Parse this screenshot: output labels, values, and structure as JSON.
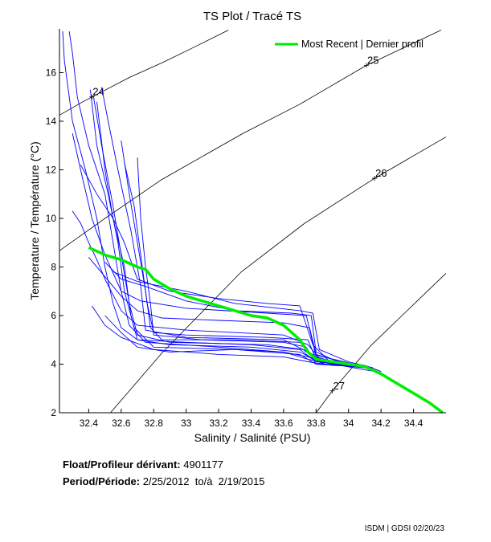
{
  "chart_data": {
    "type": "line",
    "title": "TS Plot / Tracé TS",
    "xlabel": "Salinity / Salinité (PSU)",
    "ylabel": "Temperature / Température (°C)",
    "xlim": [
      32.22,
      34.6
    ],
    "ylim": [
      2,
      17.8
    ],
    "xticks": [
      32.4,
      32.6,
      32.8,
      33,
      33.2,
      33.4,
      33.6,
      33.8,
      34,
      34.2,
      34.4
    ],
    "yticks": [
      2,
      4,
      6,
      8,
      10,
      12,
      14,
      16
    ],
    "grid": false,
    "legend": {
      "placement": "top-right",
      "entries": [
        "Most Recent | Dernier profil"
      ]
    },
    "colors": {
      "profiles": "#0000ff",
      "most_recent": "#00ee00",
      "density": "#000000"
    },
    "density_contours": [
      {
        "label": "24",
        "label_at": [
          32.42,
          15.0
        ],
        "points": [
          [
            32.22,
            14.25
          ],
          [
            32.35,
            14.75
          ],
          [
            32.42,
            15.0
          ],
          [
            32.65,
            15.8
          ],
          [
            32.85,
            16.4
          ],
          [
            33.05,
            17.05
          ],
          [
            33.26,
            17.75
          ]
        ]
      },
      {
        "label": "25",
        "label_at": [
          34.11,
          16.3
        ],
        "points": [
          [
            32.22,
            8.67
          ],
          [
            32.5,
            10.0
          ],
          [
            32.85,
            11.6
          ],
          [
            33.35,
            13.5
          ],
          [
            33.7,
            14.7
          ],
          [
            34.11,
            16.3
          ],
          [
            34.57,
            17.75
          ]
        ]
      },
      {
        "label": "26",
        "label_at": [
          34.16,
          11.65
        ],
        "points": [
          [
            32.53,
            1.97
          ],
          [
            32.85,
            4.45
          ],
          [
            33.34,
            7.8
          ],
          [
            33.73,
            9.8
          ],
          [
            34.16,
            11.65
          ],
          [
            34.6,
            13.35
          ]
        ]
      },
      {
        "label": "27",
        "label_at": [
          33.9,
          2.9
        ],
        "points": [
          [
            33.79,
            1.9
          ],
          [
            33.9,
            2.9
          ],
          [
            34.14,
            4.78
          ],
          [
            34.6,
            7.74
          ]
        ]
      }
    ],
    "most_recent": [
      [
        32.4,
        8.8
      ],
      [
        32.5,
        8.5
      ],
      [
        32.6,
        8.3
      ],
      [
        32.7,
        8.0
      ],
      [
        32.75,
        7.9
      ],
      [
        32.8,
        7.5
      ],
      [
        32.9,
        7.1
      ],
      [
        33.0,
        6.8
      ],
      [
        33.2,
        6.4
      ],
      [
        33.4,
        6.0
      ],
      [
        33.5,
        5.9
      ],
      [
        33.6,
        5.6
      ],
      [
        33.7,
        5.0
      ],
      [
        33.75,
        4.5
      ],
      [
        33.8,
        4.2
      ],
      [
        33.9,
        4.1
      ],
      [
        34.0,
        4.0
      ],
      [
        34.1,
        3.9
      ],
      [
        34.2,
        3.6
      ],
      [
        34.3,
        3.2
      ],
      [
        34.4,
        2.8
      ],
      [
        34.5,
        2.4
      ],
      [
        34.58,
        2.0
      ]
    ],
    "profiles": [
      [
        [
          32.24,
          17.7
        ],
        [
          32.25,
          16.5
        ],
        [
          32.3,
          14
        ],
        [
          32.38,
          12
        ],
        [
          32.45,
          10
        ],
        [
          32.5,
          8
        ],
        [
          32.55,
          6.5
        ],
        [
          32.6,
          5.5
        ],
        [
          32.7,
          5.0
        ],
        [
          33.0,
          4.9
        ],
        [
          33.4,
          4.8
        ],
        [
          33.7,
          4.6
        ],
        [
          33.8,
          4.1
        ],
        [
          34.0,
          3.95
        ],
        [
          34.15,
          3.8
        ]
      ],
      [
        [
          32.28,
          17.7
        ],
        [
          32.3,
          16.8
        ],
        [
          32.33,
          15
        ],
        [
          32.4,
          13
        ],
        [
          32.5,
          11
        ],
        [
          32.55,
          9
        ],
        [
          32.6,
          7
        ],
        [
          32.65,
          5.6
        ],
        [
          32.75,
          4.9
        ],
        [
          33.2,
          4.7
        ],
        [
          33.6,
          4.5
        ],
        [
          33.75,
          4.3
        ],
        [
          33.85,
          4.0
        ],
        [
          34.1,
          3.85
        ]
      ],
      [
        [
          32.41,
          15.3
        ],
        [
          32.45,
          13
        ],
        [
          32.52,
          11
        ],
        [
          32.58,
          9
        ],
        [
          32.62,
          7
        ],
        [
          32.68,
          5.5
        ],
        [
          32.8,
          4.7
        ],
        [
          33.3,
          4.6
        ],
        [
          33.7,
          4.4
        ],
        [
          33.8,
          4.0
        ],
        [
          34.05,
          3.9
        ]
      ],
      [
        [
          32.43,
          15.0
        ],
        [
          32.48,
          13
        ],
        [
          32.55,
          10.5
        ],
        [
          32.6,
          8.5
        ],
        [
          32.65,
          6.5
        ],
        [
          32.7,
          5.2
        ],
        [
          32.9,
          4.9
        ],
        [
          33.5,
          4.8
        ],
        [
          33.72,
          4.6
        ],
        [
          33.82,
          4.1
        ],
        [
          34.1,
          3.9
        ]
      ],
      [
        [
          32.6,
          13.2
        ],
        [
          32.65,
          11
        ],
        [
          32.7,
          9
        ],
        [
          32.75,
          7
        ],
        [
          32.78,
          5.5
        ],
        [
          32.85,
          5.0
        ],
        [
          33.3,
          5.0
        ],
        [
          33.7,
          4.9
        ],
        [
          33.78,
          4.3
        ],
        [
          34.0,
          4.0
        ]
      ],
      [
        [
          32.62,
          12.3
        ],
        [
          32.68,
          10.5
        ],
        [
          32.72,
          8.5
        ],
        [
          32.76,
          6.5
        ],
        [
          32.8,
          5.3
        ],
        [
          33.0,
          5.2
        ],
        [
          33.5,
          5.1
        ],
        [
          33.75,
          5.0
        ],
        [
          33.8,
          4.2
        ],
        [
          34.1,
          3.95
        ],
        [
          34.2,
          3.7
        ]
      ],
      [
        [
          32.3,
          10.3
        ],
        [
          32.35,
          9.8
        ],
        [
          32.4,
          9
        ],
        [
          32.45,
          8.3
        ],
        [
          32.5,
          7.5
        ],
        [
          32.6,
          6.2
        ],
        [
          32.7,
          5.6
        ],
        [
          33.0,
          5.4
        ],
        [
          33.6,
          5.2
        ],
        [
          33.75,
          4.8
        ],
        [
          33.85,
          4.0
        ],
        [
          34.05,
          3.9
        ]
      ],
      [
        [
          32.4,
          8.4
        ],
        [
          32.5,
          7.6
        ],
        [
          32.6,
          6.8
        ],
        [
          32.7,
          6.2
        ],
        [
          32.85,
          5.9
        ],
        [
          33.2,
          5.8
        ],
        [
          33.6,
          5.7
        ],
        [
          33.76,
          5.5
        ],
        [
          33.8,
          4.4
        ],
        [
          34.0,
          4.0
        ]
      ],
      [
        [
          32.5,
          8.2
        ],
        [
          32.6,
          7.5
        ],
        [
          32.75,
          7.2
        ],
        [
          33.0,
          6.6
        ],
        [
          33.3,
          6.2
        ],
        [
          33.65,
          6.1
        ],
        [
          33.77,
          6.0
        ],
        [
          33.8,
          4.5
        ],
        [
          33.95,
          4.05
        ],
        [
          34.1,
          3.9
        ]
      ],
      [
        [
          32.55,
          7.8
        ],
        [
          32.7,
          7.4
        ],
        [
          33.0,
          7.0
        ],
        [
          33.3,
          6.5
        ],
        [
          33.7,
          6.2
        ],
        [
          33.78,
          6.1
        ],
        [
          33.82,
          4.6
        ],
        [
          34.0,
          4.1
        ],
        [
          34.15,
          3.85
        ]
      ],
      [
        [
          32.42,
          6.4
        ],
        [
          32.5,
          5.6
        ],
        [
          32.6,
          5.1
        ],
        [
          32.8,
          4.6
        ],
        [
          33.2,
          4.4
        ],
        [
          33.6,
          4.3
        ],
        [
          33.75,
          4.1
        ],
        [
          33.9,
          3.95
        ],
        [
          34.1,
          3.9
        ]
      ],
      [
        [
          32.5,
          6.0
        ],
        [
          32.6,
          5.3
        ],
        [
          32.7,
          4.7
        ],
        [
          32.9,
          4.5
        ],
        [
          33.3,
          4.6
        ],
        [
          33.6,
          4.5
        ],
        [
          33.75,
          4.2
        ],
        [
          34.0,
          3.9
        ]
      ],
      [
        [
          32.45,
          14.8
        ],
        [
          32.5,
          12
        ],
        [
          32.55,
          10
        ],
        [
          32.62,
          8
        ],
        [
          32.66,
          6
        ],
        [
          32.7,
          5.0
        ],
        [
          32.9,
          4.8
        ],
        [
          33.4,
          4.7
        ],
        [
          33.7,
          4.5
        ],
        [
          33.82,
          4.1
        ],
        [
          34.2,
          3.65
        ]
      ],
      [
        [
          32.7,
          12.5
        ],
        [
          32.72,
          10
        ],
        [
          32.75,
          8
        ],
        [
          32.78,
          6.5
        ],
        [
          32.8,
          5.2
        ],
        [
          33.1,
          5.0
        ],
        [
          33.6,
          4.9
        ],
        [
          33.74,
          4.7
        ],
        [
          33.8,
          4.0
        ],
        [
          34.05,
          3.95
        ]
      ],
      [
        [
          32.3,
          13.5
        ],
        [
          32.35,
          12
        ],
        [
          32.42,
          10
        ],
        [
          32.5,
          8.5
        ],
        [
          32.6,
          7.0
        ],
        [
          32.72,
          6.6
        ],
        [
          33.0,
          6.3
        ],
        [
          33.5,
          6.1
        ],
        [
          33.74,
          6.0
        ],
        [
          33.8,
          4.3
        ],
        [
          34.0,
          3.95
        ]
      ],
      [
        [
          32.35,
          12.2
        ],
        [
          32.45,
          11
        ],
        [
          32.55,
          10
        ],
        [
          32.62,
          9
        ],
        [
          32.7,
          7.5
        ],
        [
          32.9,
          7.0
        ],
        [
          33.2,
          6.7
        ],
        [
          33.5,
          6.5
        ],
        [
          33.7,
          6.4
        ],
        [
          33.78,
          4.8
        ],
        [
          33.9,
          4.0
        ]
      ],
      [
        [
          32.48,
          15.4
        ],
        [
          32.52,
          14
        ],
        [
          32.58,
          12
        ],
        [
          32.66,
          9.5
        ],
        [
          32.72,
          7.2
        ],
        [
          32.75,
          5.4
        ],
        [
          33.0,
          5.1
        ],
        [
          33.6,
          5.0
        ],
        [
          33.78,
          4.4
        ],
        [
          34.1,
          3.9
        ]
      ]
    ]
  },
  "info": {
    "float_label": "Float/Profileur dérivant:",
    "float_value": "4901177",
    "period_label": "Period/Période:",
    "period_value": "2/25/2012  to/à  2/19/2015"
  },
  "footer": "ISDM | GDSI 02/20/23"
}
